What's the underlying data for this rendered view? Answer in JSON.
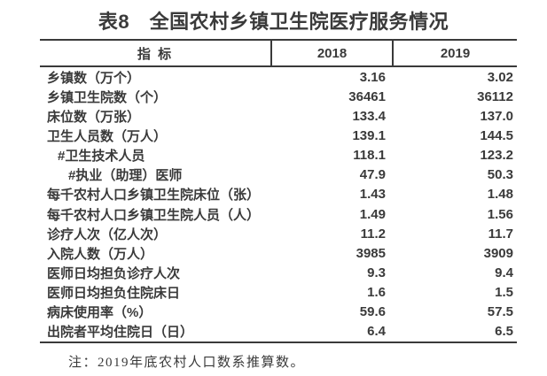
{
  "page": {
    "title": "表8　全国农村乡镇卫生院医疗服务情况",
    "note": "注：2019年底农村人口数系推算数。"
  },
  "colors": {
    "text": "#3a3a3a",
    "rule_lines": "#3a3a3a",
    "background": "#ffffff"
  },
  "table": {
    "header": {
      "indicator": "指 标",
      "col2018": "2018",
      "col2019": "2019"
    },
    "rows": [
      {
        "label": "乡镇数（万个）",
        "indent": 0,
        "y2018": "3.16",
        "y2019": "3.02"
      },
      {
        "label": "乡镇卫生院数（个）",
        "indent": 0,
        "y2018": "36461",
        "y2019": "36112"
      },
      {
        "label": "床位数（万张）",
        "indent": 0,
        "y2018": "133.4",
        "y2019": "137.0"
      },
      {
        "label": "卫生人员数（万人）",
        "indent": 0,
        "y2018": "139.1",
        "y2019": "144.5"
      },
      {
        "label": "#卫生技术人员",
        "indent": 1,
        "y2018": "118.1",
        "y2019": "123.2"
      },
      {
        "label": "#执业（助理）医师",
        "indent": 2,
        "y2018": "47.9",
        "y2019": "50.3"
      },
      {
        "label": "每千农村人口乡镇卫生院床位（张）",
        "indent": 0,
        "y2018": "1.43",
        "y2019": "1.48"
      },
      {
        "label": "每千农村人口乡镇卫生院人员（人）",
        "indent": 0,
        "y2018": "1.49",
        "y2019": "1.56"
      },
      {
        "label": "诊疗人次（亿人次）",
        "indent": 0,
        "y2018": "11.2",
        "y2019": "11.7"
      },
      {
        "label": "入院人数（万人）",
        "indent": 0,
        "y2018": "3985",
        "y2019": "3909"
      },
      {
        "label": "医师日均担负诊疗人次",
        "indent": 0,
        "y2018": "9.3",
        "y2019": "9.4"
      },
      {
        "label": "医师日均担负住院床日",
        "indent": 0,
        "y2018": "1.6",
        "y2019": "1.5"
      },
      {
        "label": "病床使用率（%）",
        "indent": 0,
        "y2018": "59.6",
        "y2019": "57.5"
      },
      {
        "label": "出院者平均住院日（日）",
        "indent": 0,
        "y2018": "6.4",
        "y2019": "6.5"
      }
    ]
  },
  "chart_data": {
    "type": "table",
    "title": "表8　全国农村乡镇卫生院医疗服务情况",
    "columns": [
      "指 标",
      "2018",
      "2019"
    ],
    "rows": [
      [
        "乡镇数（万个）",
        3.16,
        3.02
      ],
      [
        "乡镇卫生院数（个）",
        36461,
        36112
      ],
      [
        "床位数（万张）",
        133.4,
        137.0
      ],
      [
        "卫生人员数（万人）",
        139.1,
        144.5
      ],
      [
        "#卫生技术人员",
        118.1,
        123.2
      ],
      [
        "#执业（助理）医师",
        47.9,
        50.3
      ],
      [
        "每千农村人口乡镇卫生院床位（张）",
        1.43,
        1.48
      ],
      [
        "每千农村人口乡镇卫生院人员（人）",
        1.49,
        1.56
      ],
      [
        "诊疗人次（亿人次）",
        11.2,
        11.7
      ],
      [
        "入院人数（万人）",
        3985,
        3909
      ],
      [
        "医师日均担负诊疗人次",
        9.3,
        9.4
      ],
      [
        "医师日均担负住院床日",
        1.6,
        1.5
      ],
      [
        "病床使用率（%）",
        59.6,
        57.5
      ],
      [
        "出院者平均住院日（日）",
        6.4,
        6.5
      ]
    ],
    "note": "注：2019年底农村人口数系推算数。"
  }
}
